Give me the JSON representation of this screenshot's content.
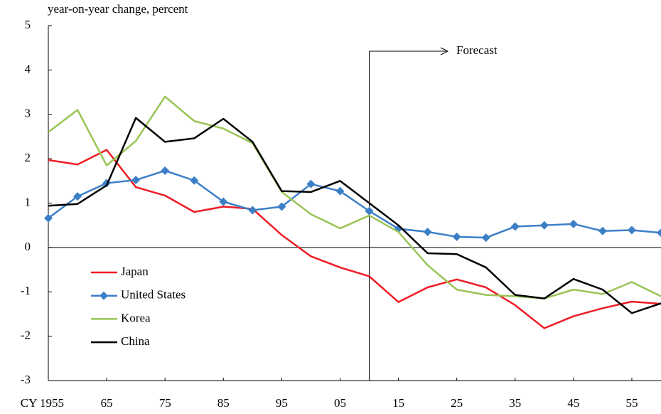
{
  "chart_data": {
    "type": "line",
    "y_label": "year-on-year change, percent",
    "x": [
      1955,
      1960,
      1965,
      1970,
      1975,
      1980,
      1985,
      1990,
      1995,
      2000,
      2005,
      2010,
      2015,
      2020,
      2025,
      2030,
      2035,
      2040,
      2045,
      2050,
      2055,
      2060
    ],
    "series": [
      {
        "name": "Japan",
        "color": "#ee1c25",
        "marker": "none",
        "values": [
          1.97,
          1.87,
          2.2,
          1.36,
          1.17,
          0.8,
          0.92,
          0.87,
          0.28,
          -0.2,
          -0.45,
          -0.65,
          -1.23,
          -0.9,
          -0.72,
          -0.9,
          -1.3,
          -1.82,
          -1.55,
          -1.37,
          -1.22,
          -1.27
        ]
      },
      {
        "name": "United States",
        "color": "#3c7fc7",
        "marker": "diamond",
        "values": [
          0.66,
          1.15,
          1.45,
          1.52,
          1.73,
          1.51,
          1.03,
          0.84,
          0.92,
          1.43,
          1.27,
          0.82,
          0.42,
          0.35,
          0.24,
          0.22,
          0.47,
          0.5,
          0.53,
          0.37,
          0.39,
          0.33
        ]
      },
      {
        "name": "Korea",
        "color": "#99c455",
        "marker": "none",
        "values": [
          2.6,
          3.1,
          1.85,
          2.4,
          3.4,
          2.85,
          2.68,
          2.35,
          1.25,
          0.75,
          0.43,
          0.72,
          0.35,
          -0.4,
          -0.95,
          -1.07,
          -1.1,
          -1.15,
          -0.95,
          -1.05,
          -0.78,
          -1.1
        ]
      },
      {
        "name": "China",
        "color": "#000000",
        "marker": "none",
        "values": [
          0.94,
          0.98,
          1.4,
          2.92,
          2.38,
          2.46,
          2.9,
          2.38,
          1.27,
          1.25,
          1.5,
          1.0,
          0.5,
          -0.13,
          -0.15,
          -0.45,
          -1.07,
          -1.15,
          -0.71,
          -0.95,
          -1.48,
          -1.26
        ]
      }
    ],
    "xlim": [
      1955,
      2060
    ],
    "xticks": [
      {
        "value": 1955,
        "label": "CY 1955"
      },
      {
        "value": 1965,
        "label": "65"
      },
      {
        "value": 1975,
        "label": "75"
      },
      {
        "value": 1985,
        "label": "85"
      },
      {
        "value": 1995,
        "label": "95"
      },
      {
        "value": 2005,
        "label": "05"
      },
      {
        "value": 2015,
        "label": "15"
      },
      {
        "value": 2025,
        "label": "25"
      },
      {
        "value": 2035,
        "label": "35"
      },
      {
        "value": 2045,
        "label": "45"
      },
      {
        "value": 2055,
        "label": "55"
      }
    ],
    "ylim": [
      -3,
      5
    ],
    "yticks": [
      -3,
      -2,
      -1,
      0,
      1,
      2,
      3,
      4,
      5
    ],
    "grid": false,
    "legend": "lower left",
    "annotation": {
      "text": "Forecast",
      "x": 2010
    }
  }
}
